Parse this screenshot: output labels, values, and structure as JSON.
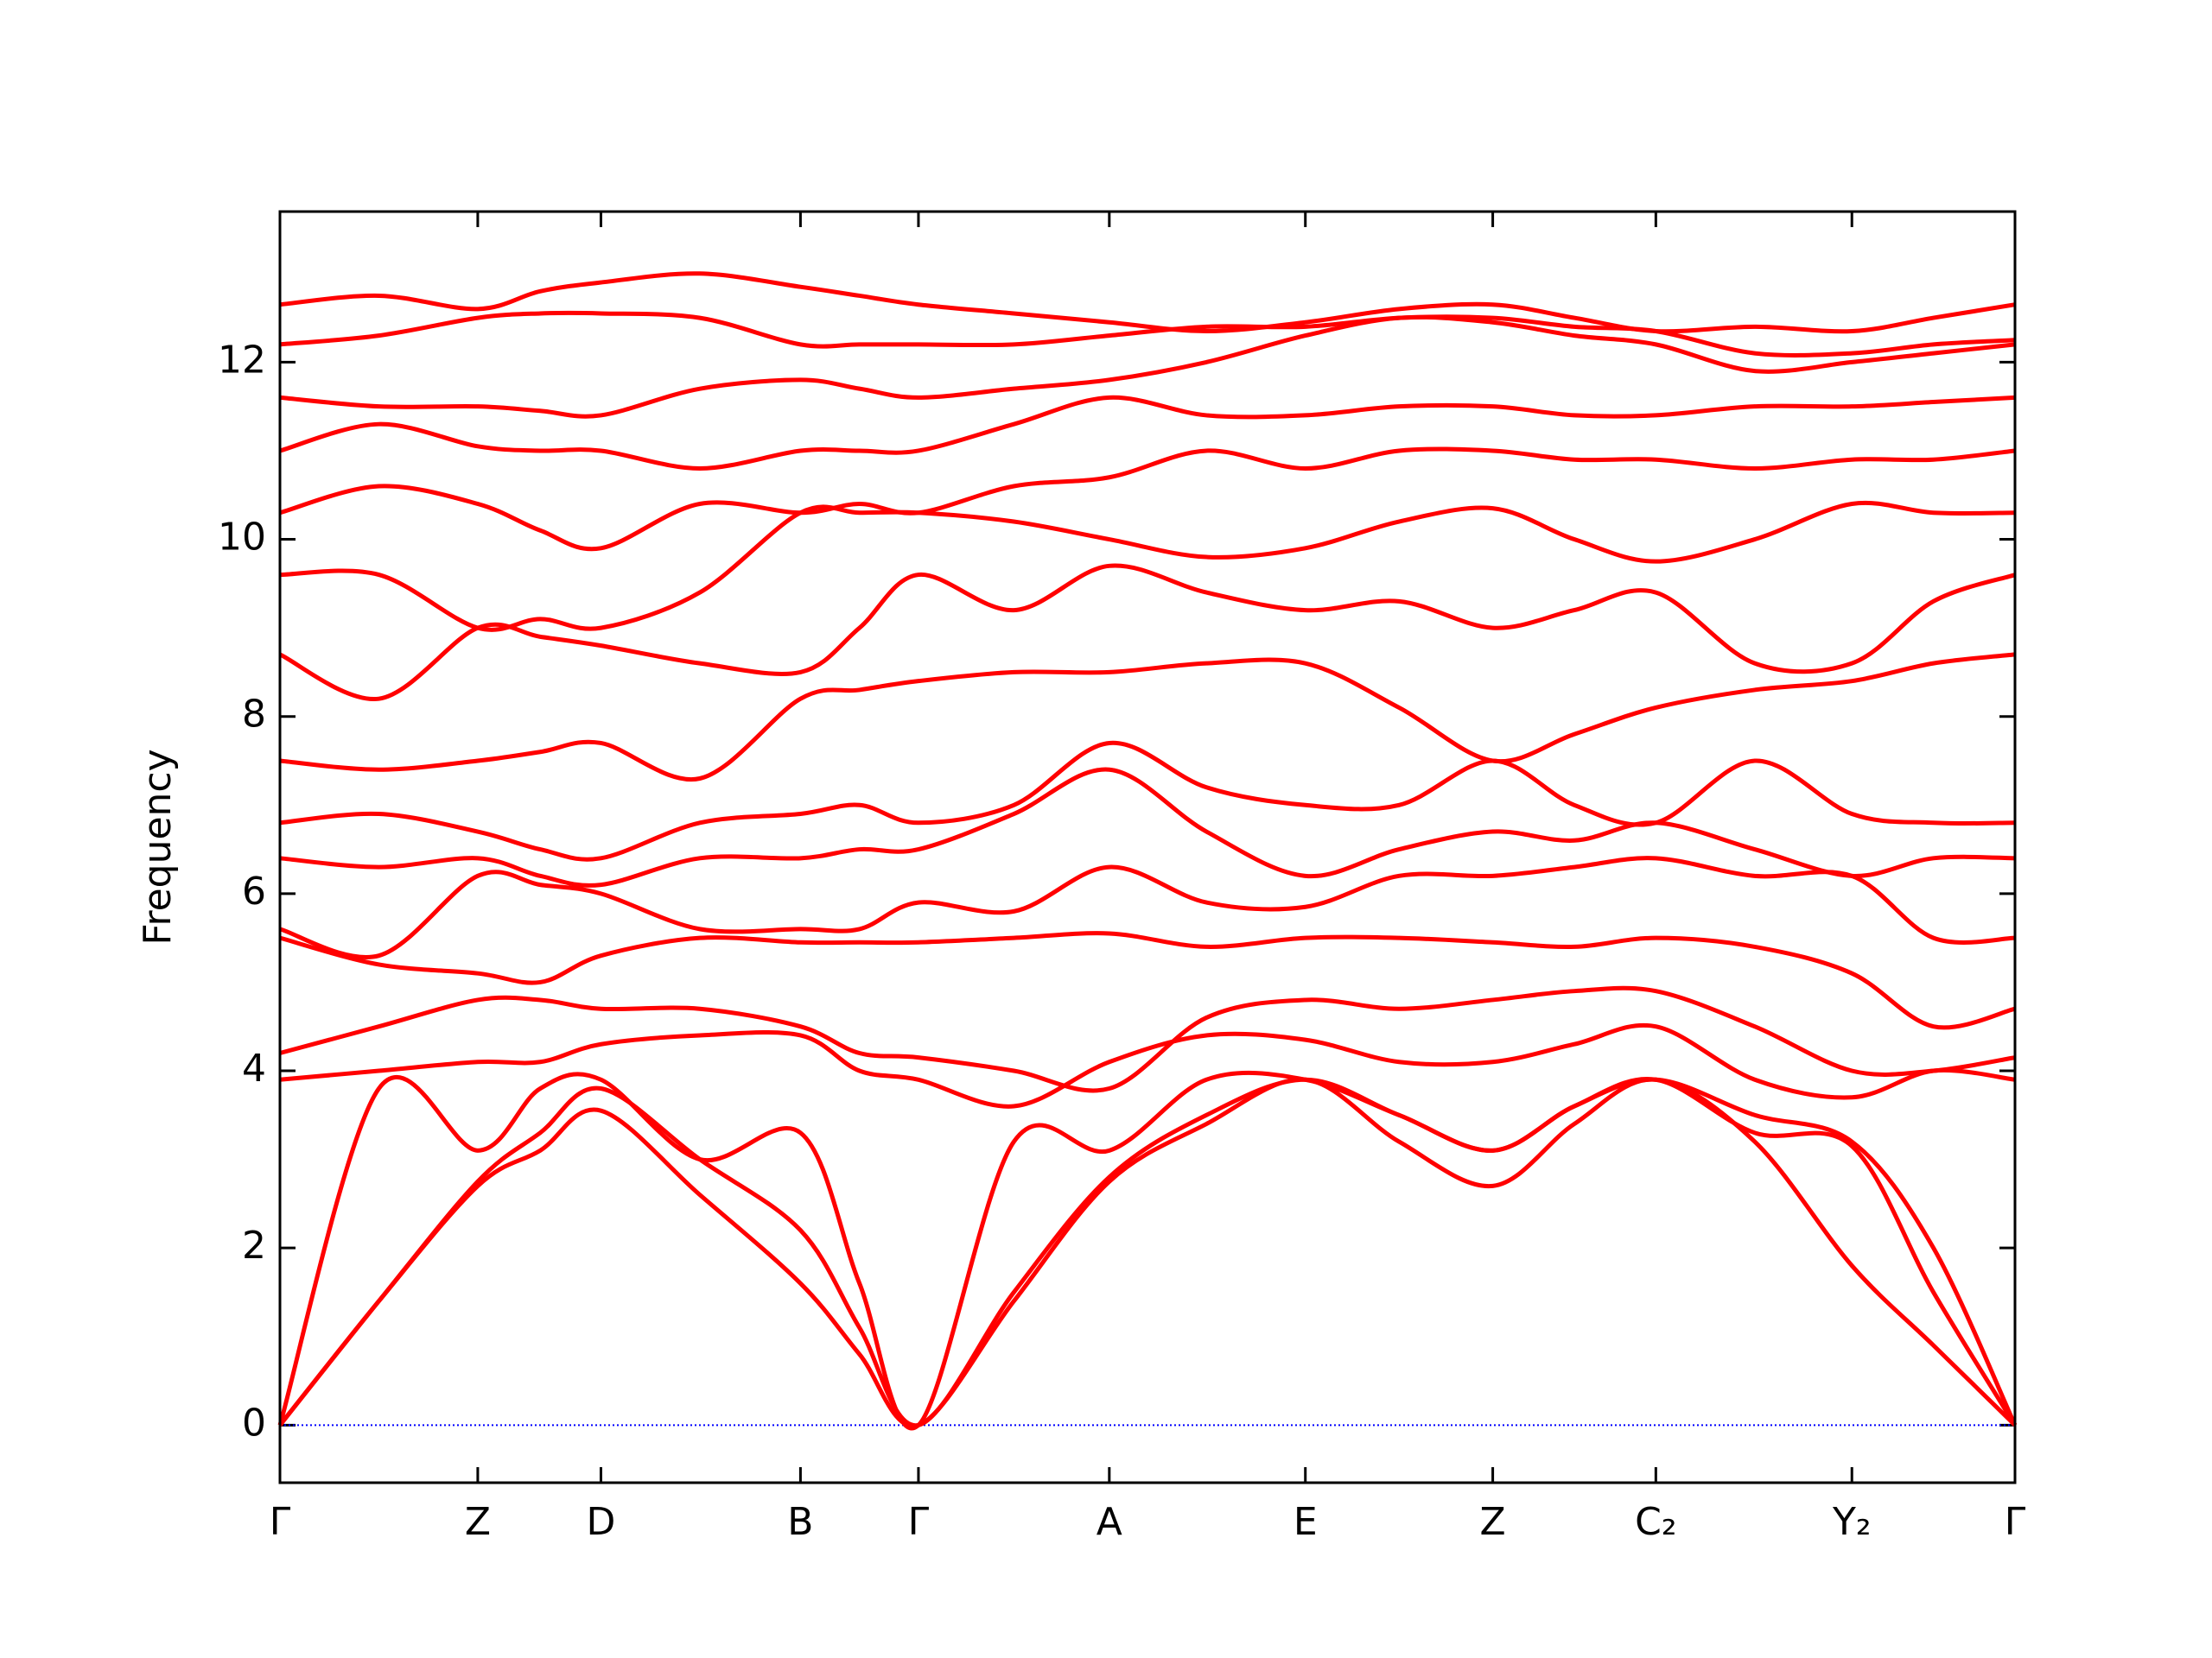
{
  "chart_data": {
    "type": "line",
    "ylabel": "Frequency",
    "x": [
      0,
      0.057,
      0.114,
      0.15,
      0.185,
      0.242,
      0.3,
      0.334,
      0.368,
      0.423,
      0.478,
      0.534,
      0.591,
      0.645,
      0.699,
      0.746,
      0.793,
      0.85,
      0.906,
      0.953,
      1.0
    ],
    "xlim": [
      0,
      1.0
    ],
    "xticks": [
      {
        "value": 0,
        "label": "Γ"
      },
      {
        "value": 0.114,
        "label": "Z"
      },
      {
        "value": 0.185,
        "label": "D"
      },
      {
        "value": 0.3,
        "label": "B"
      },
      {
        "value": 0.368,
        "label": "Γ"
      },
      {
        "value": 0.478,
        "label": "A"
      },
      {
        "value": 0.591,
        "label": "E"
      },
      {
        "value": 0.699,
        "label": "Z"
      },
      {
        "value": 0.793,
        "label": "C₂"
      },
      {
        "value": 0.906,
        "label": "Y₂"
      },
      {
        "value": 1.0,
        "label": "Γ"
      }
    ],
    "ylim": [
      -0.65,
      13.7
    ],
    "yticks": [
      0,
      2,
      4,
      6,
      8,
      10,
      12
    ],
    "hline": 0,
    "hline_color": "#0000ff",
    "series": [
      {
        "color": "#ff0000",
        "values": [
          0,
          1.4,
          2.7,
          3.1,
          3.55,
          2.6,
          1.6,
          0.8,
          0,
          1.4,
          2.75,
          3.4,
          3.9,
          3.2,
          2.7,
          3.4,
          3.9,
          3.2,
          1.8,
          0.9,
          0
        ]
      },
      {
        "color": "#ff0000",
        "values": [
          0,
          1.4,
          2.75,
          3.3,
          3.8,
          3.0,
          2.2,
          1.1,
          0,
          1.5,
          2.8,
          3.5,
          3.9,
          3.5,
          3.1,
          3.6,
          3.9,
          3.3,
          3.15,
          1.5,
          0
        ]
      },
      {
        "color": "#ff0000",
        "values": [
          0,
          3.8,
          3.1,
          3.8,
          3.9,
          3.0,
          3.3,
          1.6,
          0,
          3.2,
          3.1,
          3.9,
          3.9,
          3.5,
          3.1,
          3.6,
          3.9,
          3.5,
          3.2,
          2.0,
          0
        ]
      },
      {
        "color": "#ff0000",
        "values": [
          3.9,
          4.0,
          4.1,
          4.1,
          4.3,
          4.4,
          4.4,
          4.0,
          3.9,
          3.6,
          4.1,
          4.4,
          4.35,
          4.1,
          4.1,
          4.3,
          4.5,
          3.9,
          3.7,
          4.0,
          3.9
        ]
      },
      {
        "color": "#ff0000",
        "values": [
          4.2,
          4.5,
          4.8,
          4.8,
          4.7,
          4.7,
          4.5,
          4.2,
          4.15,
          4.0,
          3.8,
          4.6,
          4.8,
          4.7,
          4.8,
          4.9,
          4.9,
          4.5,
          4.0,
          4.0,
          4.15
        ]
      },
      {
        "color": "#ff0000",
        "values": [
          5.5,
          5.2,
          5.1,
          5.0,
          5.3,
          5.5,
          5.45,
          5.45,
          5.45,
          5.5,
          5.55,
          5.4,
          5.5,
          5.5,
          5.45,
          5.4,
          5.5,
          5.4,
          5.1,
          4.5,
          4.7
        ]
      },
      {
        "color": "#ff0000",
        "values": [
          5.6,
          5.3,
          6.2,
          6.1,
          6.0,
          5.6,
          5.6,
          5.6,
          5.9,
          5.8,
          6.3,
          5.9,
          5.85,
          6.2,
          6.2,
          6.3,
          6.4,
          6.2,
          6.2,
          5.5,
          5.5
        ]
      },
      {
        "color": "#ff0000",
        "values": [
          6.4,
          6.3,
          6.4,
          6.2,
          6.1,
          6.4,
          6.4,
          6.5,
          6.5,
          6.9,
          7.4,
          6.7,
          6.2,
          6.5,
          6.7,
          6.6,
          6.8,
          6.5,
          6.2,
          6.4,
          6.4
        ]
      },
      {
        "color": "#ff0000",
        "values": [
          6.8,
          6.9,
          6.7,
          6.5,
          6.4,
          6.8,
          6.9,
          7.0,
          6.8,
          7.0,
          7.7,
          7.2,
          7.0,
          7.0,
          7.5,
          7.0,
          6.8,
          7.5,
          6.9,
          6.8,
          6.8
        ]
      },
      {
        "color": "#ff0000",
        "values": [
          7.5,
          7.4,
          7.5,
          7.6,
          7.7,
          7.3,
          8.2,
          8.3,
          8.4,
          8.5,
          8.5,
          8.6,
          8.6,
          8.1,
          7.5,
          7.8,
          8.1,
          8.3,
          8.4,
          8.6,
          8.7
        ]
      },
      {
        "color": "#ff0000",
        "values": [
          8.7,
          8.2,
          9.0,
          8.9,
          8.8,
          8.6,
          8.5,
          9.0,
          9.6,
          9.2,
          9.7,
          9.4,
          9.2,
          9.3,
          9.0,
          9.2,
          9.4,
          8.6,
          8.6,
          9.3,
          9.6
        ]
      },
      {
        "color": "#ff0000",
        "values": [
          9.6,
          9.6,
          9.0,
          9.1,
          9.0,
          9.4,
          10.3,
          10.3,
          10.3,
          10.2,
          10.0,
          9.8,
          9.9,
          10.2,
          10.35,
          10.0,
          9.75,
          10.0,
          10.4,
          10.3,
          10.3
        ]
      },
      {
        "color": "#ff0000",
        "values": [
          10.3,
          10.6,
          10.4,
          10.1,
          9.9,
          10.4,
          10.3,
          10.4,
          10.3,
          10.6,
          10.7,
          11.0,
          10.8,
          11.0,
          11.0,
          10.9,
          10.9,
          10.8,
          10.9,
          10.9,
          11.0
        ]
      },
      {
        "color": "#ff0000",
        "values": [
          11.0,
          11.3,
          11.05,
          11.0,
          11.0,
          10.8,
          11.0,
          11.0,
          11.0,
          11.3,
          11.6,
          11.4,
          11.4,
          11.5,
          11.5,
          11.4,
          11.4,
          11.5,
          11.5,
          11.55,
          11.6
        ]
      },
      {
        "color": "#ff0000",
        "values": [
          11.6,
          11.5,
          11.5,
          11.45,
          11.4,
          11.7,
          11.8,
          11.7,
          11.6,
          11.7,
          11.8,
          12.0,
          12.3,
          12.5,
          12.45,
          12.3,
          12.2,
          11.9,
          12.0,
          12.1,
          12.2
        ]
      },
      {
        "color": "#ff0000",
        "values": [
          12.2,
          12.3,
          12.5,
          12.55,
          12.55,
          12.5,
          12.2,
          12.2,
          12.2,
          12.2,
          12.3,
          12.4,
          12.4,
          12.5,
          12.5,
          12.4,
          12.35,
          12.1,
          12.1,
          12.2,
          12.25
        ]
      },
      {
        "color": "#ff0000",
        "values": [
          12.65,
          12.75,
          12.6,
          12.8,
          12.9,
          13.0,
          12.85,
          12.75,
          12.65,
          12.55,
          12.45,
          12.35,
          12.45,
          12.6,
          12.65,
          12.5,
          12.35,
          12.4,
          12.35,
          12.5,
          12.65
        ]
      }
    ]
  }
}
